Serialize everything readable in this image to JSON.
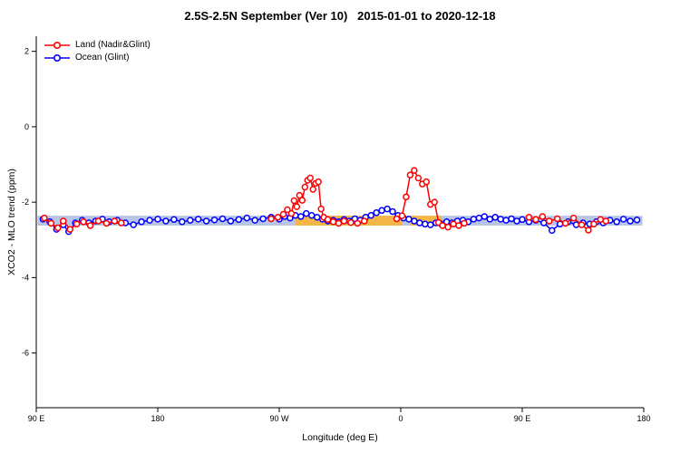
{
  "title": "2.5S-2.5N September (Ver 10)   2015-01-01 to 2020-12-18",
  "legend": {
    "items": [
      {
        "label": "Land (Nadir&Glint)",
        "color": "#ff0000"
      },
      {
        "label": "Ocean (Glint)",
        "color": "#0000ff"
      }
    ],
    "position": "top-left"
  },
  "chart_data": {
    "type": "line",
    "title": "2.5S-2.5N September (Ver 10)   2015-01-01 to 2020-12-18",
    "xlabel": "Longitude (deg E)",
    "ylabel": "XCO2 - MLO trend (ppm)",
    "xlim": [
      90,
      540
    ],
    "ylim": [
      -7.45,
      2.4
    ],
    "grid": false,
    "x_ticks": [
      {
        "value": 90,
        "label": "90 E"
      },
      {
        "value": 180,
        "label": "180"
      },
      {
        "value": 270,
        "label": "90 W"
      },
      {
        "value": 360,
        "label": "0"
      },
      {
        "value": 450,
        "label": "90 E"
      },
      {
        "value": 540,
        "label": "180"
      }
    ],
    "y_ticks": [
      {
        "value": 2,
        "label": "2"
      },
      {
        "value": 0,
        "label": "0"
      },
      {
        "value": -2,
        "label": "-2"
      },
      {
        "value": -4,
        "label": "-4"
      },
      {
        "value": -6,
        "label": "-6"
      }
    ],
    "bands": [
      {
        "name": "ocean-reference-band",
        "x0": 91,
        "x1": 539,
        "y_top": -2.36,
        "y_bottom": -2.62,
        "color": "rgba(125,150,205,0.55)"
      },
      {
        "name": "land-reference-band",
        "x0": 282,
        "x1": 361,
        "y_top": -2.36,
        "y_bottom": -2.62,
        "color": "rgba(247,181,61,0.95)"
      },
      {
        "name": "land-reference-band",
        "x0": 367,
        "x1": 390,
        "y_top": -2.36,
        "y_bottom": -2.62,
        "color": "rgba(247,181,61,0.95)"
      }
    ],
    "series": [
      {
        "name": "Land (Nadir&Glint)",
        "color": "#ff0000",
        "marker": "open-circle",
        "segments": [
          [
            [
              96,
              -2.42
            ],
            [
              101,
              -2.56
            ],
            [
              106,
              -2.68
            ],
            [
              110,
              -2.5
            ],
            [
              115,
              -2.72
            ],
            [
              120,
              -2.58
            ],
            [
              125,
              -2.52
            ],
            [
              130,
              -2.62
            ],
            [
              136,
              -2.5
            ],
            [
              142,
              -2.56
            ],
            [
              148,
              -2.5
            ],
            [
              153,
              -2.55
            ]
          ],
          [
            [
              264,
              -2.44
            ],
            [
              269,
              -2.4
            ],
            [
              273,
              -2.32
            ],
            [
              276,
              -2.2
            ],
            [
              279,
              -2.3
            ],
            [
              281,
              -1.96
            ],
            [
              283,
              -2.12
            ],
            [
              285,
              -1.82
            ],
            [
              287,
              -1.95
            ],
            [
              289,
              -1.6
            ],
            [
              291,
              -1.42
            ],
            [
              293,
              -1.36
            ],
            [
              295,
              -1.66
            ],
            [
              297,
              -1.5
            ],
            [
              299,
              -1.46
            ],
            [
              301,
              -2.18
            ],
            [
              303,
              -2.4
            ],
            [
              306,
              -2.46
            ],
            [
              310,
              -2.52
            ],
            [
              314,
              -2.56
            ],
            [
              318,
              -2.5
            ],
            [
              323,
              -2.54
            ],
            [
              328,
              -2.56
            ],
            [
              333,
              -2.5
            ]
          ],
          [
            [
              357,
              -2.44
            ],
            [
              361,
              -2.36
            ],
            [
              364,
              -1.86
            ],
            [
              367,
              -1.28
            ],
            [
              370,
              -1.16
            ],
            [
              373,
              -1.36
            ],
            [
              376,
              -1.52
            ],
            [
              379,
              -1.46
            ],
            [
              382,
              -2.06
            ],
            [
              385,
              -2.0
            ],
            [
              388,
              -2.54
            ],
            [
              391,
              -2.62
            ],
            [
              395,
              -2.66
            ],
            [
              399,
              -2.58
            ],
            [
              403,
              -2.62
            ],
            [
              407,
              -2.56
            ]
          ],
          [
            [
              455,
              -2.4
            ],
            [
              460,
              -2.46
            ],
            [
              465,
              -2.38
            ],
            [
              470,
              -2.5
            ],
            [
              476,
              -2.44
            ],
            [
              482,
              -2.56
            ],
            [
              488,
              -2.42
            ],
            [
              494,
              -2.6
            ],
            [
              499,
              -2.74
            ],
            [
              503,
              -2.58
            ],
            [
              508,
              -2.46
            ],
            [
              512,
              -2.5
            ]
          ]
        ]
      },
      {
        "name": "Ocean (Glint)",
        "color": "#0000ff",
        "marker": "open-circle",
        "segments": [
          [
            [
              95,
              -2.45
            ],
            [
              100,
              -2.52
            ],
            [
              105,
              -2.72
            ],
            [
              110,
              -2.6
            ],
            [
              114,
              -2.78
            ],
            [
              119,
              -2.55
            ],
            [
              124,
              -2.48
            ],
            [
              129,
              -2.55
            ],
            [
              134,
              -2.5
            ],
            [
              139,
              -2.45
            ],
            [
              144,
              -2.52
            ],
            [
              150,
              -2.48
            ],
            [
              156,
              -2.55
            ],
            [
              162,
              -2.6
            ],
            [
              168,
              -2.52
            ],
            [
              174,
              -2.48
            ],
            [
              180,
              -2.45
            ],
            [
              186,
              -2.5
            ],
            [
              192,
              -2.46
            ],
            [
              198,
              -2.52
            ],
            [
              204,
              -2.48
            ],
            [
              210,
              -2.45
            ],
            [
              216,
              -2.5
            ],
            [
              222,
              -2.47
            ],
            [
              228,
              -2.44
            ],
            [
              234,
              -2.5
            ],
            [
              240,
              -2.46
            ],
            [
              246,
              -2.42
            ],
            [
              252,
              -2.48
            ],
            [
              258,
              -2.44
            ],
            [
              264,
              -2.4
            ],
            [
              270,
              -2.45
            ],
            [
              274,
              -2.38
            ],
            [
              278,
              -2.42
            ],
            [
              282,
              -2.35
            ],
            [
              286,
              -2.38
            ],
            [
              290,
              -2.3
            ],
            [
              294,
              -2.35
            ],
            [
              298,
              -2.4
            ],
            [
              302,
              -2.45
            ],
            [
              306,
              -2.5
            ],
            [
              310,
              -2.48
            ],
            [
              314,
              -2.52
            ],
            [
              318,
              -2.46
            ],
            [
              322,
              -2.5
            ],
            [
              326,
              -2.44
            ],
            [
              330,
              -2.48
            ],
            [
              334,
              -2.4
            ],
            [
              338,
              -2.35
            ],
            [
              342,
              -2.28
            ],
            [
              346,
              -2.22
            ],
            [
              350,
              -2.18
            ],
            [
              354,
              -2.25
            ],
            [
              358,
              -2.35
            ],
            [
              362,
              -2.42
            ],
            [
              366,
              -2.45
            ],
            [
              370,
              -2.5
            ],
            [
              374,
              -2.55
            ],
            [
              378,
              -2.58
            ],
            [
              382,
              -2.6
            ],
            [
              386,
              -2.55
            ],
            [
              390,
              -2.58
            ],
            [
              394,
              -2.52
            ],
            [
              398,
              -2.55
            ],
            [
              402,
              -2.5
            ],
            [
              406,
              -2.48
            ],
            [
              410,
              -2.52
            ],
            [
              414,
              -2.45
            ],
            [
              418,
              -2.42
            ],
            [
              422,
              -2.38
            ],
            [
              426,
              -2.45
            ],
            [
              430,
              -2.4
            ],
            [
              434,
              -2.45
            ],
            [
              438,
              -2.48
            ],
            [
              442,
              -2.44
            ],
            [
              446,
              -2.5
            ],
            [
              450,
              -2.46
            ],
            [
              455,
              -2.52
            ],
            [
              460,
              -2.48
            ],
            [
              466,
              -2.55
            ],
            [
              472,
              -2.75
            ],
            [
              478,
              -2.58
            ],
            [
              484,
              -2.52
            ],
            [
              490,
              -2.6
            ],
            [
              495,
              -2.55
            ],
            [
              500,
              -2.58
            ],
            [
              505,
              -2.52
            ],
            [
              510,
              -2.55
            ],
            [
              515,
              -2.48
            ],
            [
              520,
              -2.52
            ],
            [
              525,
              -2.45
            ],
            [
              530,
              -2.5
            ],
            [
              535,
              -2.47
            ]
          ]
        ]
      }
    ]
  }
}
